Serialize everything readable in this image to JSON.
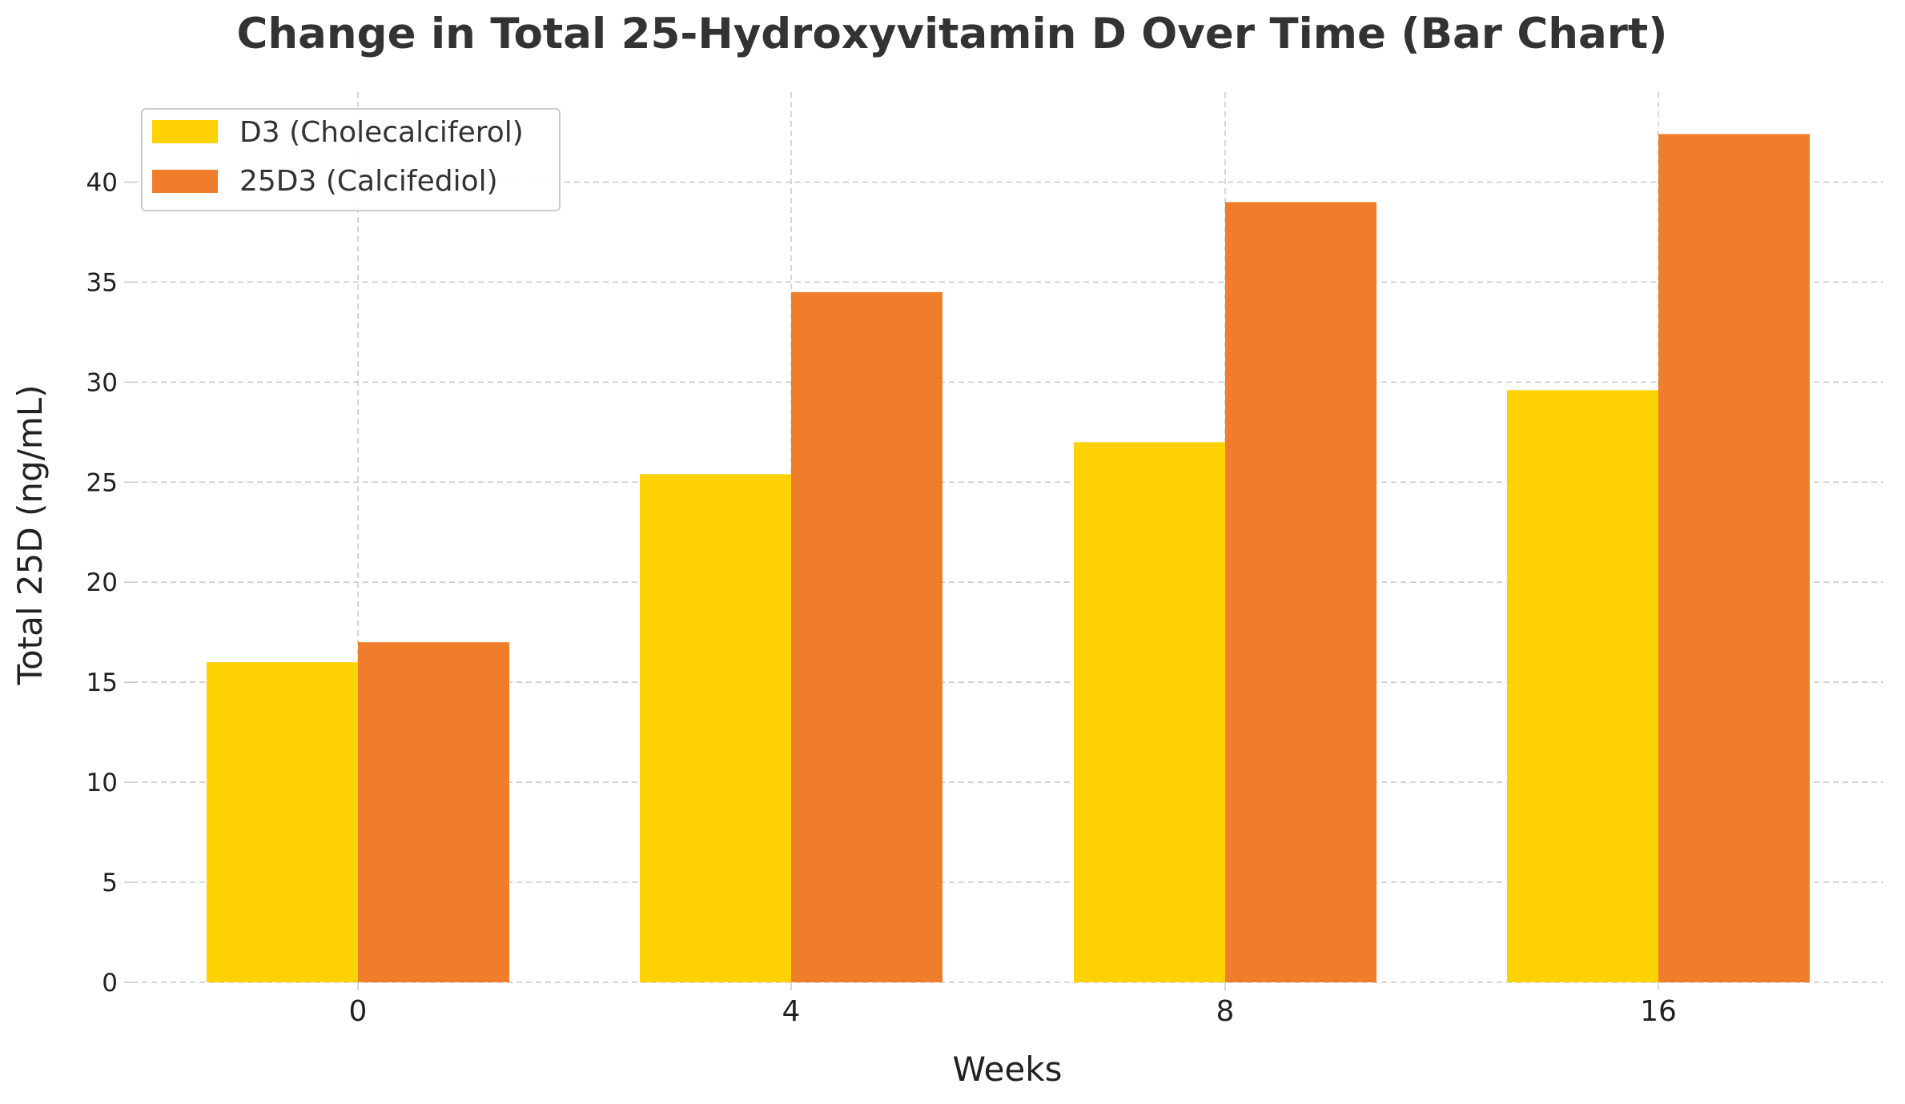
{
  "chart_data": {
    "type": "bar",
    "title": "Change in Total 25-Hydroxyvitamin D Over Time (Bar Chart)",
    "xlabel": "Weeks",
    "ylabel": "Total 25D (ng/mL)",
    "categories": [
      "0",
      "4",
      "8",
      "16"
    ],
    "series": [
      {
        "name": "D3 (Cholecalciferol)",
        "values": [
          16.0,
          25.4,
          27.0,
          29.6
        ],
        "color": "#FFD204"
      },
      {
        "name": "25D3 (Calcifediol)",
        "values": [
          17.0,
          34.5,
          39.0,
          42.4
        ],
        "color": "#EF7D2B"
      }
    ],
    "ylim": [
      0,
      44.5
    ],
    "yticks": [
      "0",
      "5",
      "10",
      "15",
      "20",
      "25",
      "30",
      "35",
      "40"
    ],
    "grid": true,
    "legend_position": "top-left"
  }
}
